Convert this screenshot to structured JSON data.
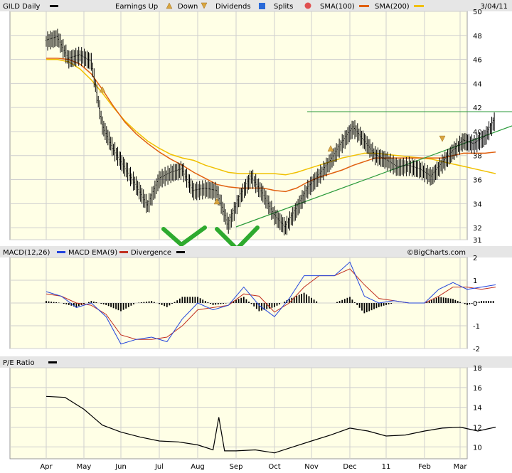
{
  "chart_data": [
    {
      "type": "line",
      "title": "GILD Daily",
      "date": "3/04/11",
      "legend": [
        "Earnings Up",
        "Down",
        "Dividends",
        "Splits",
        "SMA(100)",
        "SMA(200)"
      ],
      "colors": {
        "price": "#000000",
        "sma100": "#e06010",
        "sma200": "#f0c000",
        "trendline": "#2a9a3a",
        "checkmark": "#2eaa2e",
        "plot_bg": "#ffffe6",
        "grid": "#c8c8c8"
      },
      "y_ticks": [
        31,
        32,
        34,
        36,
        38,
        40,
        42,
        44,
        46,
        48,
        50
      ],
      "ylim": [
        31,
        50
      ],
      "watermark": "©BigCharts.com",
      "price_x": [
        0.0,
        0.3,
        0.6,
        0.9,
        1.2,
        1.5,
        1.8,
        2.1,
        2.4,
        2.7,
        3.0,
        3.3,
        3.6,
        3.9,
        4.2,
        4.5,
        4.8,
        5.1,
        5.4,
        5.7,
        6.0,
        6.3,
        6.6,
        6.9,
        7.2,
        7.5,
        7.8,
        8.1,
        8.4,
        8.7,
        9.0,
        9.3,
        9.6,
        9.9,
        10.2,
        10.5,
        10.8,
        11.1,
        11.4,
        11.7,
        12.0
      ],
      "price": [
        47.5,
        47.8,
        46.0,
        46.3,
        45.8,
        40.5,
        38.5,
        37.0,
        35.5,
        33.8,
        36.0,
        36.5,
        36.8,
        35.0,
        35.2,
        35.0,
        32.2,
        34.5,
        36.2,
        34.8,
        33.0,
        32.0,
        33.5,
        35.2,
        36.3,
        37.5,
        39.0,
        40.3,
        39.2,
        38.0,
        37.6,
        37.0,
        37.1,
        36.8,
        36.2,
        37.3,
        38.3,
        39.2,
        38.9,
        39.5,
        41.0
      ],
      "sma100": [
        46.1,
        46.1,
        46.0,
        45.6,
        44.8,
        43.5,
        42.1,
        40.8,
        39.8,
        39.0,
        38.3,
        37.7,
        37.2,
        36.6,
        36.1,
        35.6,
        35.4,
        35.3,
        35.3,
        35.3,
        35.1,
        35.0,
        35.3,
        35.8,
        36.2,
        36.5,
        36.8,
        37.2,
        37.5,
        37.8,
        37.8,
        37.8,
        37.8,
        37.8,
        37.8,
        37.8,
        38.0,
        38.2,
        38.2,
        38.2,
        38.3
      ],
      "sma200": [
        46.0,
        46.0,
        45.8,
        45.2,
        44.3,
        43.2,
        42.0,
        40.9,
        40.0,
        39.2,
        38.6,
        38.1,
        37.8,
        37.6,
        37.2,
        36.9,
        36.6,
        36.5,
        36.5,
        36.5,
        36.5,
        36.4,
        36.6,
        36.9,
        37.2,
        37.5,
        37.8,
        38.0,
        38.2,
        38.2,
        38.1,
        38.0,
        37.9,
        37.8,
        37.7,
        37.5,
        37.3,
        37.1,
        36.9,
        36.7,
        36.5
      ],
      "markers": [
        {
          "type": "earnings",
          "x": 1.5,
          "y": 43.5
        },
        {
          "type": "earnings",
          "x": 4.5,
          "y": 34.2
        },
        {
          "type": "earnings",
          "x": 7.5,
          "y": 38.6
        },
        {
          "type": "earnings_down",
          "x": 10.5,
          "y": 39.4
        }
      ]
    },
    {
      "type": "line",
      "title": "MACD(12,26)",
      "legend": [
        "MACD EMA(9)",
        "Divergence"
      ],
      "colors": {
        "macd": "#2244dd",
        "ema": "#c03020",
        "divergence": "#000000"
      },
      "y_ticks": [
        -2,
        -1,
        0,
        1,
        2
      ],
      "ylim": [
        -2,
        2
      ],
      "macd_x": [
        0.0,
        0.4,
        0.8,
        1.2,
        1.6,
        2.0,
        2.4,
        2.8,
        3.2,
        3.6,
        4.0,
        4.4,
        4.8,
        5.2,
        5.6,
        6.0,
        6.4,
        6.8,
        7.2,
        7.6,
        8.0,
        8.4,
        8.8,
        9.2,
        9.6,
        10.0,
        10.4,
        10.8,
        11.2,
        11.6,
        12.0
      ],
      "macd": [
        0.5,
        0.3,
        -0.2,
        0.0,
        -0.6,
        -1.8,
        -1.6,
        -1.5,
        -1.7,
        -0.7,
        0.0,
        -0.3,
        -0.1,
        0.7,
        -0.1,
        -0.6,
        0.2,
        1.2,
        1.2,
        1.2,
        1.8,
        0.3,
        0.0,
        0.1,
        0.0,
        0.0,
        0.6,
        0.9,
        0.6,
        0.7,
        0.8
      ],
      "ema": [
        0.4,
        0.3,
        0.0,
        -0.1,
        -0.5,
        -1.4,
        -1.6,
        -1.6,
        -1.5,
        -1.0,
        -0.3,
        -0.2,
        -0.1,
        0.4,
        0.3,
        -0.4,
        0.0,
        0.7,
        1.2,
        1.2,
        1.5,
        0.8,
        0.2,
        0.1,
        0.0,
        0.0,
        0.3,
        0.7,
        0.7,
        0.6,
        0.7
      ]
    },
    {
      "type": "line",
      "title": "P/E Ratio",
      "colors": {
        "pe": "#000000"
      },
      "y_ticks": [
        10,
        12,
        14,
        16,
        18
      ],
      "ylim": [
        8.8,
        18
      ],
      "pe_x": [
        0.0,
        0.5,
        1.0,
        1.5,
        2.0,
        2.5,
        3.0,
        3.5,
        4.0,
        4.4,
        4.55,
        4.7,
        5.0,
        5.5,
        6.0,
        6.5,
        7.0,
        7.5,
        8.0,
        8.5,
        9.0,
        9.5,
        10.0,
        10.5,
        11.0,
        11.5,
        12.0
      ],
      "pe": [
        15.1,
        15.0,
        13.8,
        12.2,
        11.5,
        11.0,
        10.6,
        10.5,
        10.2,
        9.7,
        13.0,
        9.6,
        9.6,
        9.7,
        9.4,
        10.0,
        10.6,
        11.2,
        11.9,
        11.6,
        11.1,
        11.2,
        11.6,
        11.9,
        12.0,
        11.6,
        12.0
      ]
    }
  ],
  "x_labels": [
    "Apr",
    "May",
    "Jun",
    "Jul",
    "Aug",
    "Sep",
    "Oct",
    "Nov",
    "Dec",
    "11",
    "Feb",
    "Mar"
  ]
}
